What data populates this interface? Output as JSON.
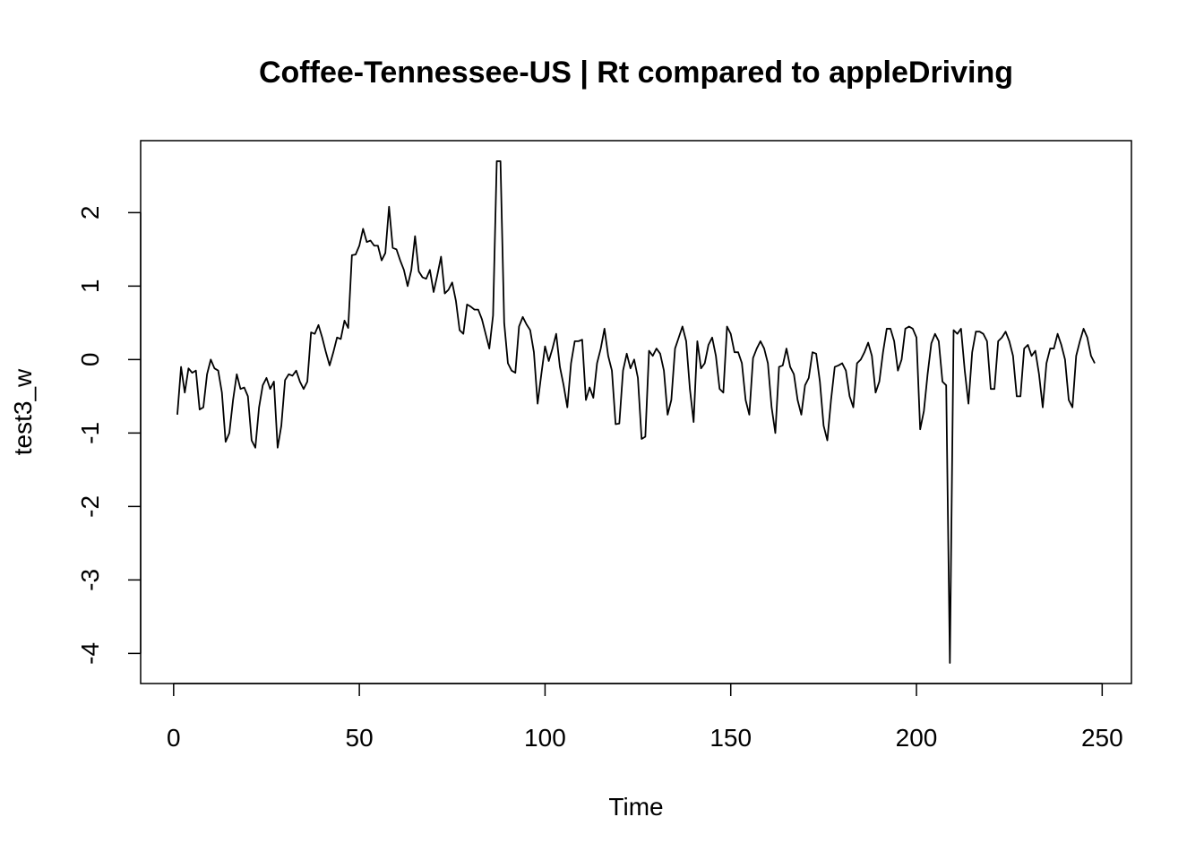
{
  "chart_data": {
    "type": "line",
    "title": "Coffee-Tennessee-US | Rt compared to appleDriving",
    "xlabel": "Time",
    "ylabel": "test3_w",
    "color": "#000000",
    "x": [
      1,
      2,
      3,
      4,
      5,
      6,
      7,
      8,
      9,
      10,
      11,
      12,
      13,
      14,
      15,
      16,
      17,
      18,
      19,
      20,
      21,
      22,
      23,
      24,
      25,
      26,
      27,
      28,
      29,
      30,
      31,
      32,
      33,
      34,
      35,
      36,
      37,
      38,
      39,
      40,
      41,
      42,
      43,
      44,
      45,
      46,
      47,
      48,
      49,
      50,
      51,
      52,
      53,
      54,
      55,
      56,
      57,
      58,
      59,
      60,
      61,
      62,
      63,
      64,
      65,
      66,
      67,
      68,
      69,
      70,
      71,
      72,
      73,
      74,
      75,
      76,
      77,
      78,
      79,
      80,
      81,
      82,
      83,
      84,
      85,
      86,
      87,
      88,
      89,
      90,
      91,
      92,
      93,
      94,
      95,
      96,
      97,
      98,
      99,
      100,
      101,
      102,
      103,
      104,
      105,
      106,
      107,
      108,
      109,
      110,
      111,
      112,
      113,
      114,
      115,
      116,
      117,
      118,
      119,
      120,
      121,
      122,
      123,
      124,
      125,
      126,
      127,
      128,
      129,
      130,
      131,
      132,
      133,
      134,
      135,
      136,
      137,
      138,
      139,
      140,
      141,
      142,
      143,
      144,
      145,
      146,
      147,
      148,
      149,
      150,
      151,
      152,
      153,
      154,
      155,
      156,
      157,
      158,
      159,
      160,
      161,
      162,
      163,
      164,
      165,
      166,
      167,
      168,
      169,
      170,
      171,
      172,
      173,
      174,
      175,
      176,
      177,
      178,
      179,
      180,
      181,
      182,
      183,
      184,
      185,
      186,
      187,
      188,
      189,
      190,
      191,
      192,
      193,
      194,
      195,
      196,
      197,
      198,
      199,
      200,
      201,
      202,
      203,
      204,
      205,
      206,
      207,
      208,
      209,
      210,
      211,
      212,
      213,
      214,
      215,
      216,
      217,
      218,
      219,
      220,
      221,
      222,
      223,
      224,
      225,
      226,
      227,
      228,
      229,
      230,
      231,
      232,
      233,
      234,
      235,
      236,
      237,
      238,
      239,
      240,
      241,
      242,
      243,
      244,
      245,
      246,
      247,
      248
    ],
    "values": [
      -0.75,
      -0.1,
      -0.45,
      -0.12,
      -0.18,
      -0.15,
      -0.68,
      -0.65,
      -0.2,
      0.0,
      -0.12,
      -0.15,
      -0.45,
      -1.12,
      -1.0,
      -0.55,
      -0.2,
      -0.4,
      -0.38,
      -0.5,
      -1.1,
      -1.2,
      -0.65,
      -0.35,
      -0.25,
      -0.4,
      -0.3,
      -1.2,
      -0.9,
      -0.28,
      -0.2,
      -0.22,
      -0.15,
      -0.3,
      -0.4,
      -0.3,
      0.37,
      0.35,
      0.47,
      0.3,
      0.1,
      -0.08,
      0.1,
      0.3,
      0.28,
      0.53,
      0.43,
      1.42,
      1.43,
      1.55,
      1.78,
      1.6,
      1.62,
      1.55,
      1.55,
      1.35,
      1.45,
      2.08,
      1.52,
      1.5,
      1.35,
      1.22,
      1.0,
      1.22,
      1.68,
      1.2,
      1.12,
      1.1,
      1.22,
      0.92,
      1.15,
      1.4,
      0.9,
      0.95,
      1.05,
      0.8,
      0.4,
      0.35,
      0.75,
      0.72,
      0.68,
      0.68,
      0.55,
      0.35,
      0.15,
      0.6,
      2.7,
      2.7,
      0.5,
      -0.05,
      -0.15,
      -0.18,
      0.45,
      0.58,
      0.48,
      0.4,
      0.1,
      -0.6,
      -0.2,
      0.18,
      -0.02,
      0.15,
      0.35,
      -0.1,
      -0.35,
      -0.65,
      -0.05,
      0.25,
      0.25,
      0.27,
      -0.55,
      -0.38,
      -0.52,
      -0.05,
      0.15,
      0.42,
      0.05,
      -0.15,
      -0.88,
      -0.87,
      -0.15,
      0.08,
      -0.12,
      0.0,
      -0.25,
      -1.08,
      -1.05,
      0.12,
      0.05,
      0.15,
      0.08,
      -0.15,
      -0.75,
      -0.55,
      0.15,
      0.3,
      0.45,
      0.25,
      -0.4,
      -0.85,
      0.25,
      -0.12,
      -0.05,
      0.2,
      0.3,
      0.05,
      -0.4,
      -0.45,
      0.45,
      0.35,
      0.1,
      0.1,
      -0.05,
      -0.55,
      -0.75,
      0.02,
      0.15,
      0.25,
      0.15,
      -0.05,
      -0.65,
      -1.0,
      -0.1,
      -0.08,
      0.15,
      -0.1,
      -0.2,
      -0.55,
      -0.75,
      -0.35,
      -0.25,
      0.1,
      0.08,
      -0.3,
      -0.9,
      -1.1,
      -0.55,
      -0.1,
      -0.08,
      -0.05,
      -0.15,
      -0.5,
      -0.65,
      -0.05,
      0.0,
      0.1,
      0.23,
      0.05,
      -0.45,
      -0.3,
      0.1,
      0.42,
      0.42,
      0.25,
      -0.15,
      0.0,
      0.42,
      0.45,
      0.42,
      0.3,
      -0.95,
      -0.7,
      -0.2,
      0.22,
      0.35,
      0.25,
      -0.3,
      -0.35,
      -4.13,
      0.4,
      0.35,
      0.42,
      -0.15,
      -0.6,
      0.1,
      0.38,
      0.38,
      0.35,
      0.25,
      -0.4,
      -0.4,
      0.25,
      0.3,
      0.38,
      0.25,
      0.05,
      -0.5,
      -0.5,
      0.15,
      0.2,
      0.05,
      0.12,
      -0.2,
      -0.65,
      -0.05,
      0.15,
      0.15,
      0.35,
      0.2,
      0.0,
      -0.55,
      -0.65,
      0.05,
      0.25,
      0.42,
      0.3,
      0.05,
      -0.05
    ],
    "xlim": [
      -8.88,
      257.88
    ],
    "ylim": [
      -4.41,
      2.98
    ],
    "xticks": [
      0,
      50,
      100,
      150,
      200,
      250
    ],
    "yticks": [
      -4,
      -3,
      -2,
      -1,
      0,
      1,
      2
    ]
  }
}
